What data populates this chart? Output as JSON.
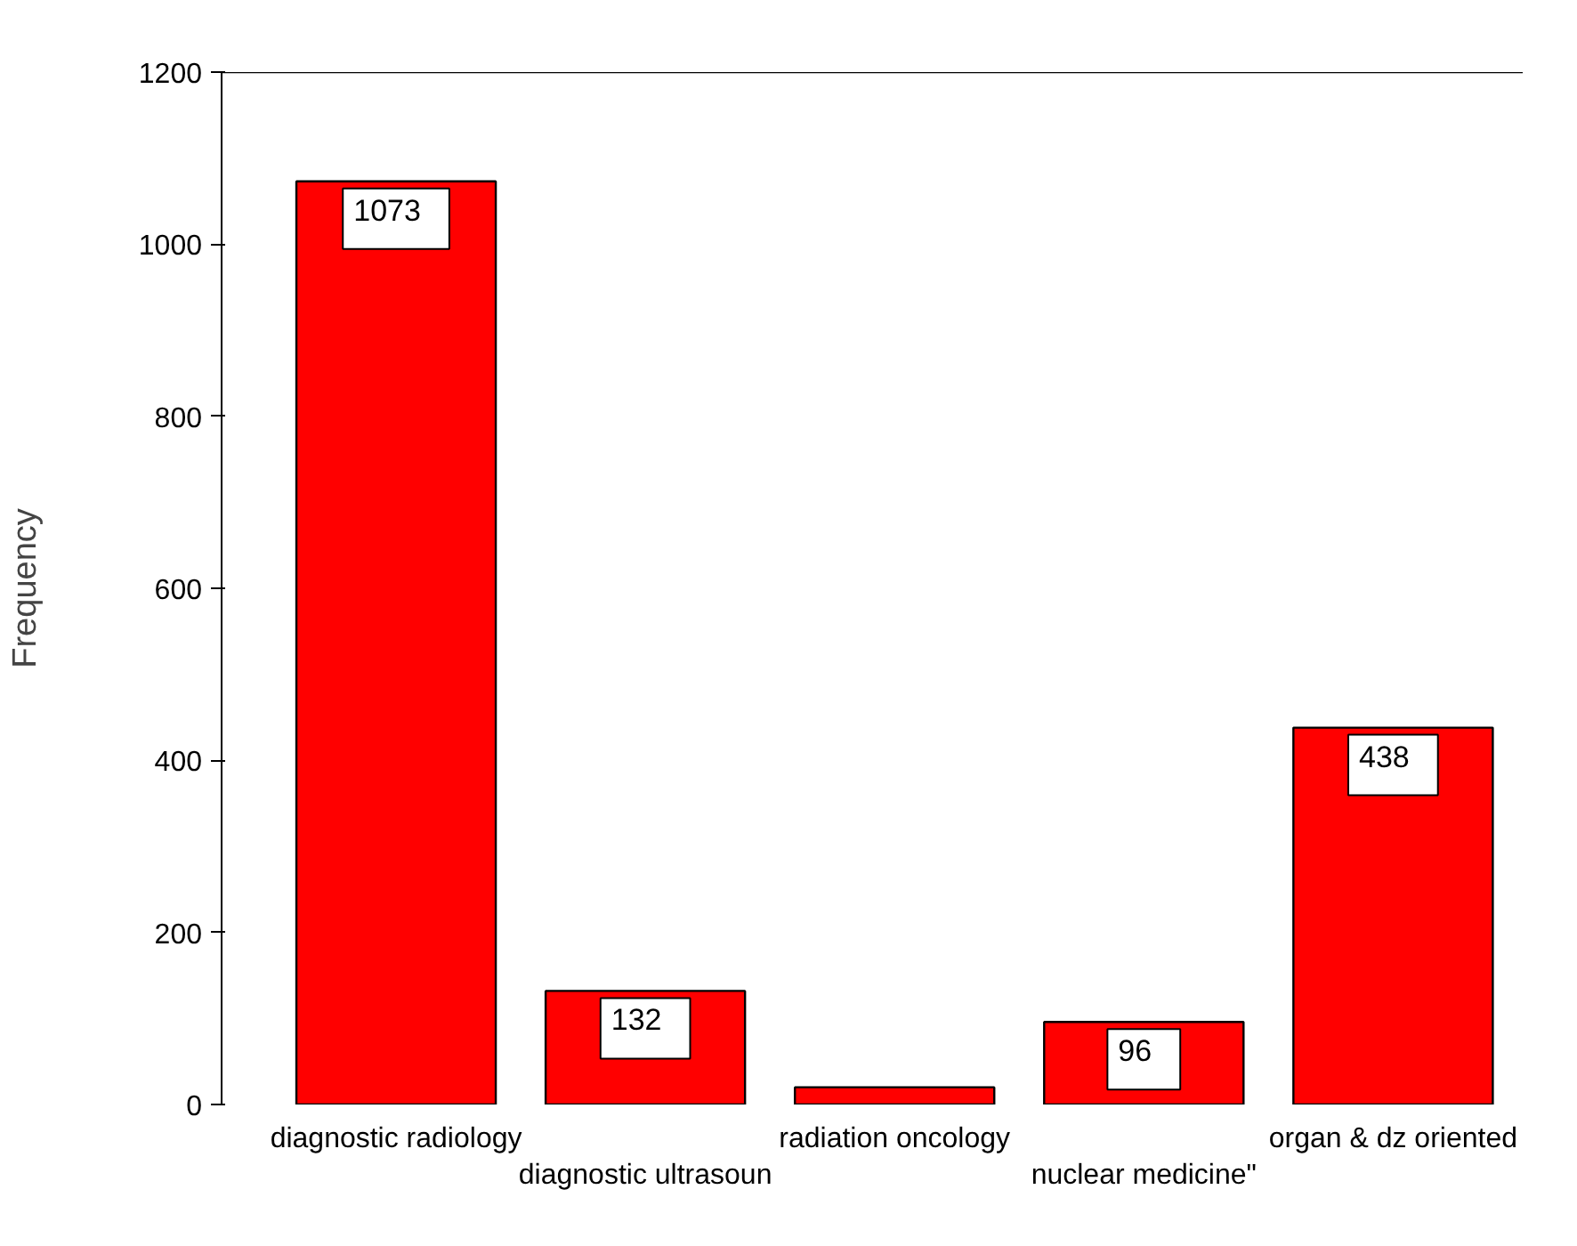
{
  "chart_data": {
    "type": "bar",
    "ylabel": "Frequency",
    "categories": [
      "diagnostic radiology",
      "diagnostic ultrasoun",
      "radiation oncology",
      "nuclear medicine\"",
      "organ & dz oriented"
    ],
    "values": [
      1073,
      132,
      20,
      96,
      438
    ],
    "value_labels": [
      "1073",
      "132",
      null,
      "96",
      "438"
    ],
    "color": "#ff0000",
    "ylim": [
      0,
      1200
    ],
    "yticks": [
      0,
      200,
      400,
      600,
      800,
      1000,
      1200
    ],
    "grid": false
  }
}
